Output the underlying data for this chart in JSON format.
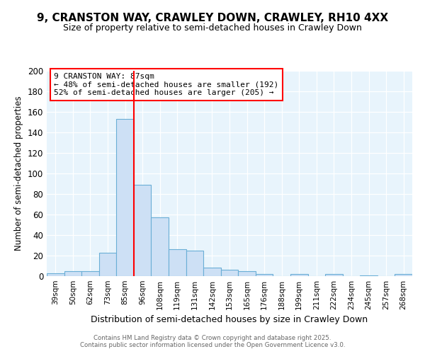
{
  "title1": "9, CRANSTON WAY, CRAWLEY DOWN, CRAWLEY, RH10 4XX",
  "title2": "Size of property relative to semi-detached houses in Crawley Down",
  "xlabel": "Distribution of semi-detached houses by size in Crawley Down",
  "ylabel": "Number of semi-detached properties",
  "categories": [
    "39sqm",
    "50sqm",
    "62sqm",
    "73sqm",
    "85sqm",
    "96sqm",
    "108sqm",
    "119sqm",
    "131sqm",
    "142sqm",
    "153sqm",
    "165sqm",
    "176sqm",
    "188sqm",
    "199sqm",
    "211sqm",
    "222sqm",
    "234sqm",
    "245sqm",
    "257sqm",
    "268sqm"
  ],
  "values": [
    3,
    5,
    5,
    23,
    153,
    89,
    57,
    26,
    25,
    8,
    6,
    5,
    2,
    0,
    2,
    0,
    2,
    0,
    1,
    0,
    2
  ],
  "bar_color": "#cde0f5",
  "bar_edge_color": "#6aaed6",
  "red_line_x": 4.5,
  "annotation_title": "9 CRANSTON WAY: 87sqm",
  "annotation_line1": "← 48% of semi-detached houses are smaller (192)",
  "annotation_line2": "52% of semi-detached houses are larger (205) →",
  "footer1": "Contains HM Land Registry data © Crown copyright and database right 2025.",
  "footer2": "Contains public sector information licensed under the Open Government Licence v3.0.",
  "ylim": [
    0,
    200
  ],
  "yticks": [
    0,
    20,
    40,
    60,
    80,
    100,
    120,
    140,
    160,
    180,
    200
  ],
  "background_color": "#e8f4fc",
  "title1_fontsize": 11,
  "title2_fontsize": 9
}
